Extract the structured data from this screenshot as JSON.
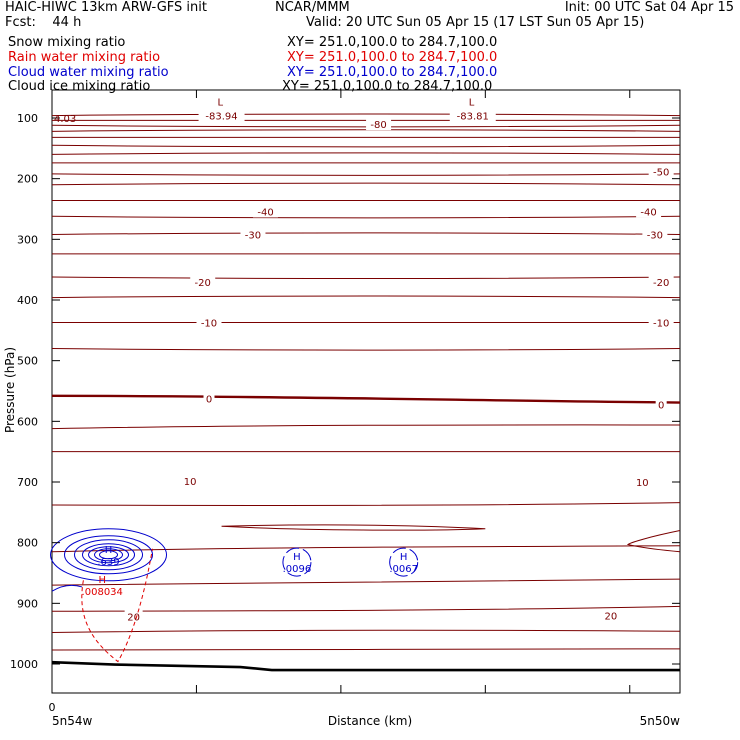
{
  "header": {
    "title": "HAIC-HIWC 13km ARW-GFS init",
    "org": "NCAR/MMM",
    "init": "Init: 00 UTC Sat 04 Apr 15",
    "fcst": "Fcst:    44 h",
    "valid": "Valid: 20 UTC Sun 05 Apr 15 (17 LST Sun 05 Apr 15)",
    "fields": [
      {
        "name": "Snow mixing ratio",
        "xy": "XY= 251.0,100.0 to 284.7,100.0",
        "color": "#000000"
      },
      {
        "name": "Rain water mixing ratio",
        "xy": "XY= 251.0,100.0 to 284.7,100.0",
        "color": "#e00000"
      },
      {
        "name": "Cloud water mixing ratio",
        "xy": "XY= 251.0,100.0 to 284.7,100.0",
        "color": "#0000cc"
      },
      {
        "name": "Cloud ice mixing ratio",
        "xy": "XY= 251.0,100.0 to 284.7,100.0",
        "color": "#000000"
      }
    ]
  },
  "colors": {
    "temperature": "#7a0000",
    "rain": "#e00000",
    "cloud_water": "#0000cc",
    "ground": "#000000"
  },
  "chart_data": {
    "type": "line",
    "xlabel": "Distance (km)",
    "ylabel": "Pressure (hPa)",
    "x_ticks": [
      "0"
    ],
    "x_endpoints": {
      "left": "5n54w",
      "right": "5n50w"
    },
    "ylim": [
      1050,
      50
    ],
    "y_ticks": [
      100,
      200,
      300,
      400,
      500,
      600,
      700,
      800,
      900,
      1000
    ],
    "isotherms": [
      {
        "label": "-83.94",
        "kind": "L",
        "x": 0.27,
        "p": 96
      },
      {
        "label": "-83.81",
        "kind": "L",
        "x": 0.67,
        "p": 96
      },
      {
        "label": "-80",
        "x": 0.52,
        "p": 110
      },
      {
        "label": "-50",
        "x": 0.97,
        "p": 188
      },
      {
        "label": "-40",
        "x": 0.34,
        "p": 254
      },
      {
        "label": "-40",
        "x": 0.95,
        "p": 254
      },
      {
        "label": "-30",
        "x": 0.32,
        "p": 292
      },
      {
        "label": "-30",
        "x": 0.96,
        "p": 292
      },
      {
        "label": "-20",
        "x": 0.24,
        "p": 370
      },
      {
        "label": "-20",
        "x": 0.97,
        "p": 370
      },
      {
        "label": "-10",
        "x": 0.25,
        "p": 437
      },
      {
        "label": "-10",
        "x": 0.97,
        "p": 437
      },
      {
        "label": "0",
        "x": 0.25,
        "p": 562
      },
      {
        "label": "0",
        "x": 0.97,
        "p": 572
      },
      {
        "label": "10",
        "x": 0.22,
        "p": 698
      },
      {
        "label": "10",
        "x": 0.94,
        "p": 700
      },
      {
        "label": "20",
        "x": 0.13,
        "p": 922
      },
      {
        "label": "20",
        "x": 0.89,
        "p": 920
      }
    ],
    "left_edge_label": "4.03",
    "maxima": [
      {
        "label": "H",
        "value": ".639",
        "x": 0.09,
        "p": 820,
        "field": "cloud_water"
      },
      {
        "label": "H",
        "value": ".0096",
        "x": 0.39,
        "p": 832,
        "field": "cloud_water"
      },
      {
        "label": "H",
        "value": ".0067",
        "x": 0.56,
        "p": 832,
        "field": "cloud_water"
      },
      {
        "label": "H",
        "value": ".008034",
        "x": 0.08,
        "p": 870,
        "field": "rain"
      }
    ]
  }
}
